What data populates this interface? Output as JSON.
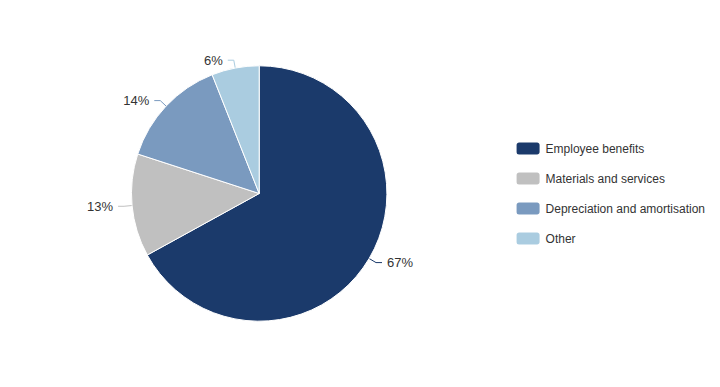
{
  "chart_data": {
    "type": "pie",
    "categories": [
      "Employee benefits",
      "Materials and services",
      "Depreciation and amortisation",
      "Other"
    ],
    "values": [
      67,
      13,
      14,
      6
    ],
    "value_labels": [
      "67%",
      "13%",
      "14%",
      "6%"
    ],
    "colors": [
      "#1b3a6b",
      "#c0c0c0",
      "#7a9abf",
      "#aacce0"
    ],
    "data_labels": true,
    "legend": "right"
  }
}
